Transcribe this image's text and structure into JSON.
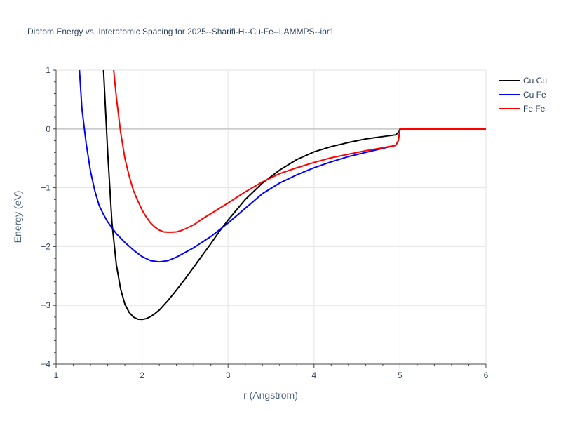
{
  "chart_data": {
    "type": "line",
    "title": "Diatom Energy vs. Interatomic Spacing for 2025--Sharifi-H--Cu-Fe--LAMMPS--ipr1",
    "xlabel": "r (Angstrom)",
    "ylabel": "Energy (eV)",
    "xlim": [
      1,
      6
    ],
    "ylim": [
      -4,
      1
    ],
    "xticks": [
      1,
      2,
      3,
      4,
      5,
      6
    ],
    "xtick_labels": [
      "1",
      "2",
      "3",
      "4",
      "5",
      "6"
    ],
    "yticks": [
      1,
      0,
      -1,
      -2,
      -3,
      -4
    ],
    "ytick_labels": [
      "1",
      "0",
      "−1",
      "−2",
      "−3",
      "−4"
    ],
    "grid": true,
    "legend_position": "top-right",
    "series": [
      {
        "name": "Cu Cu",
        "color": "#000000",
        "x": [
          1.5,
          1.55,
          1.6,
          1.65,
          1.7,
          1.75,
          1.8,
          1.85,
          1.9,
          1.95,
          2.0,
          2.05,
          2.1,
          2.15,
          2.2,
          2.3,
          2.4,
          2.5,
          2.6,
          2.7,
          2.8,
          2.9,
          3.0,
          3.2,
          3.4,
          3.6,
          3.8,
          4.0,
          4.2,
          4.4,
          4.6,
          4.8,
          4.95,
          4.98,
          5.0,
          5.2,
          5.5,
          6.0
        ],
        "y": [
          3.0,
          1.05,
          -0.4,
          -1.6,
          -2.3,
          -2.72,
          -2.98,
          -3.12,
          -3.2,
          -3.235,
          -3.24,
          -3.225,
          -3.19,
          -3.14,
          -3.08,
          -2.92,
          -2.74,
          -2.55,
          -2.35,
          -2.15,
          -1.95,
          -1.74,
          -1.55,
          -1.2,
          -0.92,
          -0.7,
          -0.52,
          -0.39,
          -0.3,
          -0.23,
          -0.17,
          -0.13,
          -0.1,
          -0.06,
          0.0,
          0.0,
          0.0,
          0.0
        ]
      },
      {
        "name": "Cu Fe",
        "color": "#0000ff",
        "x": [
          1.25,
          1.3,
          1.35,
          1.4,
          1.45,
          1.5,
          1.55,
          1.6,
          1.7,
          1.8,
          1.9,
          2.0,
          2.1,
          2.2,
          2.3,
          2.4,
          2.6,
          2.8,
          3.0,
          3.2,
          3.4,
          3.6,
          3.8,
          4.0,
          4.2,
          4.4,
          4.6,
          4.8,
          4.95,
          4.98,
          5.0,
          5.2,
          5.5,
          6.0
        ],
        "y": [
          1.5,
          0.35,
          -0.25,
          -0.72,
          -1.05,
          -1.3,
          -1.45,
          -1.58,
          -1.78,
          -1.93,
          -2.06,
          -2.17,
          -2.24,
          -2.26,
          -2.24,
          -2.18,
          -2.02,
          -1.83,
          -1.6,
          -1.35,
          -1.1,
          -0.92,
          -0.78,
          -0.66,
          -0.56,
          -0.47,
          -0.4,
          -0.33,
          -0.28,
          -0.2,
          0.0,
          0.0,
          0.0,
          0.0
        ]
      },
      {
        "name": "Fe Fe",
        "color": "#ff0000",
        "x": [
          1.6,
          1.65,
          1.7,
          1.75,
          1.8,
          1.85,
          1.9,
          1.95,
          2.0,
          2.05,
          2.1,
          2.15,
          2.2,
          2.25,
          2.3,
          2.35,
          2.4,
          2.45,
          2.5,
          2.6,
          2.7,
          2.8,
          3.0,
          3.2,
          3.4,
          3.6,
          3.8,
          4.0,
          4.2,
          4.4,
          4.6,
          4.8,
          4.95,
          4.98,
          5.0,
          5.2,
          5.5,
          6.0
        ],
        "y": [
          2.0,
          1.3,
          0.55,
          -0.05,
          -0.5,
          -0.8,
          -1.05,
          -1.22,
          -1.38,
          -1.5,
          -1.6,
          -1.67,
          -1.72,
          -1.75,
          -1.755,
          -1.755,
          -1.75,
          -1.73,
          -1.7,
          -1.63,
          -1.53,
          -1.44,
          -1.26,
          -1.07,
          -0.9,
          -0.76,
          -0.66,
          -0.57,
          -0.49,
          -0.43,
          -0.37,
          -0.32,
          -0.28,
          -0.2,
          0.0,
          0.0,
          0.0,
          0.0
        ]
      }
    ]
  }
}
